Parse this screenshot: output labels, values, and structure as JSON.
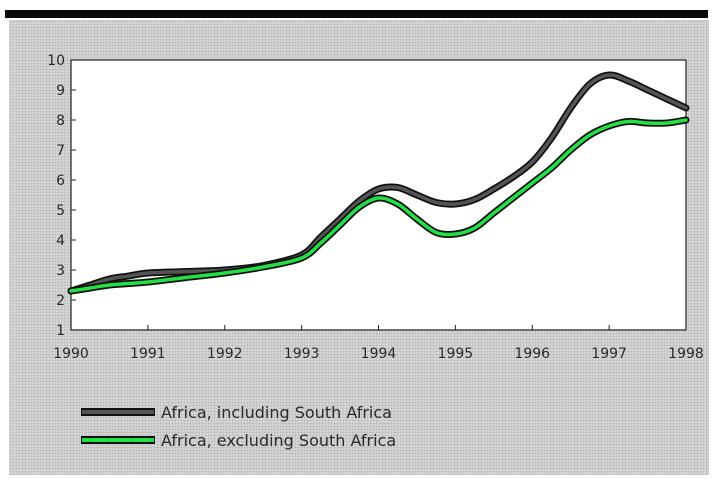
{
  "chart_data": {
    "type": "line",
    "title": "",
    "xlabel": "",
    "ylabel": "",
    "xlim": [
      1990,
      1998
    ],
    "ylim": [
      1,
      10
    ],
    "x_ticks": [
      "1990",
      "1991",
      "1992",
      "1993",
      "1994",
      "1995",
      "1996",
      "1997",
      "1998"
    ],
    "y_ticks": [
      "1",
      "2",
      "3",
      "4",
      "5",
      "6",
      "7",
      "8",
      "9",
      "10"
    ],
    "grid": false,
    "legend_position": "bottom-left",
    "series": [
      {
        "name": "Africa, including South Africa",
        "color": "#555555",
        "x": [
          1990,
          1990.25,
          1990.5,
          1990.75,
          1991,
          1991.5,
          1992,
          1992.5,
          1993,
          1993.25,
          1993.5,
          1993.75,
          1994,
          1994.25,
          1994.5,
          1994.75,
          1995,
          1995.25,
          1995.5,
          1995.75,
          1996,
          1996.25,
          1996.5,
          1996.75,
          1997,
          1997.25,
          1997.5,
          1997.75,
          1998
        ],
        "y": [
          2.3,
          2.5,
          2.7,
          2.8,
          2.9,
          2.95,
          3.0,
          3.15,
          3.5,
          4.1,
          4.7,
          5.3,
          5.7,
          5.75,
          5.5,
          5.25,
          5.2,
          5.35,
          5.7,
          6.1,
          6.6,
          7.4,
          8.4,
          9.2,
          9.5,
          9.3,
          9.0,
          8.7,
          8.4
        ]
      },
      {
        "name": "Africa, excluding South Africa",
        "color": "#22e045",
        "x": [
          1990,
          1990.25,
          1990.5,
          1990.75,
          1991,
          1991.5,
          1992,
          1992.5,
          1993,
          1993.25,
          1993.5,
          1993.75,
          1994,
          1994.25,
          1994.5,
          1994.75,
          1995,
          1995.25,
          1995.5,
          1995.75,
          1996,
          1996.25,
          1996.5,
          1996.75,
          1997,
          1997.25,
          1997.5,
          1997.75,
          1998
        ],
        "y": [
          2.3,
          2.4,
          2.5,
          2.55,
          2.6,
          2.75,
          2.9,
          3.1,
          3.4,
          3.9,
          4.5,
          5.1,
          5.4,
          5.2,
          4.7,
          4.25,
          4.2,
          4.4,
          4.9,
          5.4,
          5.9,
          6.4,
          7.0,
          7.5,
          7.8,
          7.95,
          7.9,
          7.9,
          8.0
        ]
      }
    ]
  }
}
